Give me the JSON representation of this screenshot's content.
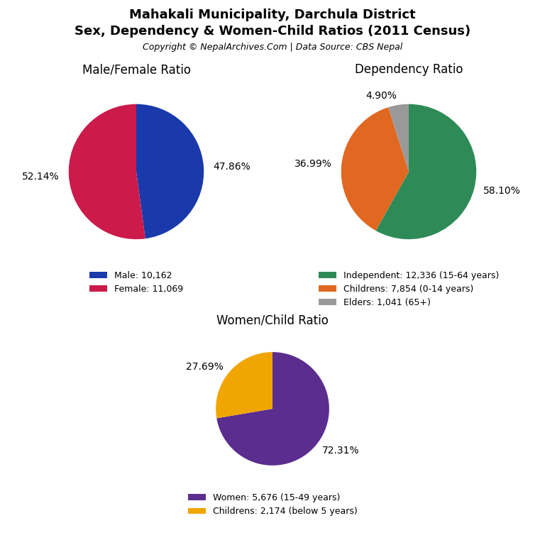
{
  "title": "Mahakali Municipality, Darchula District",
  "subtitle": "Sex, Dependency & Women-Child Ratios (2011 Census)",
  "annotations": [
    "Copyright © NepalArchives.Com | Data Source: CBS Nepal"
  ],
  "chart_data": [
    {
      "type": "pie",
      "title": "Male/Female Ratio",
      "categories": [
        "Male: 10,162",
        "Female: 11,069"
      ],
      "values": [
        47.86,
        52.14
      ],
      "value_labels": [
        "47.86%",
        "52.14%"
      ],
      "colors": [
        "#1a3aab",
        "#cc1a4a"
      ],
      "data_labels": true,
      "legend": "upper center"
    },
    {
      "type": "pie",
      "title": "Dependency Ratio",
      "categories": [
        "Independent: 12,336 (15-64 years)",
        "Childrens: 7,854 (0-14 years)",
        "Elders: 1,041 (65+)"
      ],
      "values": [
        58.1,
        36.99,
        4.9
      ],
      "value_labels": [
        "58.10%",
        "36.99%",
        "4.90%"
      ],
      "colors": [
        "#2e8b57",
        "#e06820",
        "#999999"
      ],
      "data_labels": true,
      "legend": "upper center"
    },
    {
      "type": "pie",
      "title": "Women/Child Ratio",
      "categories": [
        "Women: 5,676 (15-49 years)",
        "Childrens: 2,174 (below 5 years)"
      ],
      "values": [
        72.31,
        27.69
      ],
      "value_labels": [
        "72.31%",
        "27.69%"
      ],
      "colors": [
        "#5b2d8e",
        "#f0a500"
      ],
      "data_labels": true,
      "legend": "upper center"
    }
  ]
}
